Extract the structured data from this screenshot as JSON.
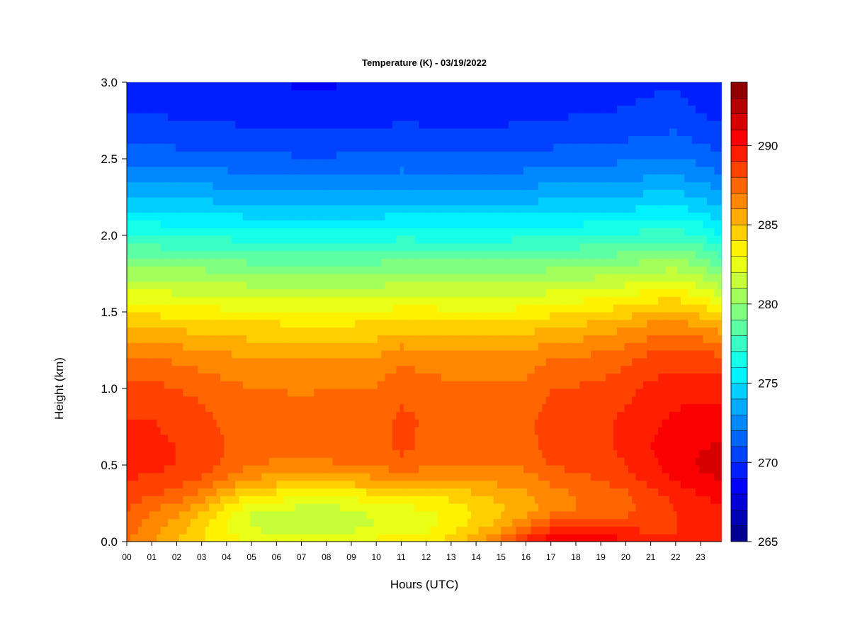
{
  "chart_data": {
    "type": "heatmap",
    "title": "Temperature (K) - 03/19/2022",
    "xlabel": "Hours (UTC)",
    "ylabel": "Height (km)",
    "xlim": [
      0,
      23.85
    ],
    "ylim": [
      0.0,
      3.0
    ],
    "x_ticks": [
      {
        "value": 0,
        "label": "00"
      },
      {
        "value": 1,
        "label": "01"
      },
      {
        "value": 2,
        "label": "02"
      },
      {
        "value": 3,
        "label": "03"
      },
      {
        "value": 4,
        "label": "04"
      },
      {
        "value": 5,
        "label": "05"
      },
      {
        "value": 6,
        "label": "06"
      },
      {
        "value": 7,
        "label": "07"
      },
      {
        "value": 8,
        "label": "08"
      },
      {
        "value": 9,
        "label": "09"
      },
      {
        "value": 10,
        "label": "10"
      },
      {
        "value": 11,
        "label": "11"
      },
      {
        "value": 12,
        "label": "12"
      },
      {
        "value": 13,
        "label": "13"
      },
      {
        "value": 14,
        "label": "14"
      },
      {
        "value": 15,
        "label": "15"
      },
      {
        "value": 16,
        "label": "16"
      },
      {
        "value": 17,
        "label": "17"
      },
      {
        "value": 18,
        "label": "18"
      },
      {
        "value": 19,
        "label": "19"
      },
      {
        "value": 20,
        "label": "20"
      },
      {
        "value": 21,
        "label": "21"
      },
      {
        "value": 22,
        "label": "22"
      },
      {
        "value": 23,
        "label": "23"
      }
    ],
    "y_ticks": [
      {
        "value": 0.0,
        "label": "0.0"
      },
      {
        "value": 0.5,
        "label": "0.5"
      },
      {
        "value": 1.0,
        "label": "1.0"
      },
      {
        "value": 1.5,
        "label": "1.5"
      },
      {
        "value": 2.0,
        "label": "2.0"
      },
      {
        "value": 2.5,
        "label": "2.5"
      },
      {
        "value": 3.0,
        "label": "3.0"
      }
    ],
    "colorbar": {
      "min": 265,
      "max": 294,
      "step": 1,
      "ticks": [
        {
          "value": 265,
          "label": "265"
        },
        {
          "value": 270,
          "label": "270"
        },
        {
          "value": 275,
          "label": "275"
        },
        {
          "value": 280,
          "label": "280"
        },
        {
          "value": 285,
          "label": "285"
        },
        {
          "value": 290,
          "label": "290"
        }
      ],
      "colormap": "jet"
    },
    "hours": [
      0,
      1,
      2,
      3,
      4,
      5,
      6,
      7,
      8,
      9,
      10,
      11,
      12,
      13,
      14,
      15,
      16,
      17,
      18,
      19,
      20,
      21,
      22,
      23,
      23.85
    ],
    "heights_km": [
      0.0,
      0.1,
      0.2,
      0.3,
      0.4,
      0.5,
      0.6,
      0.8,
      1.0,
      1.2,
      1.4,
      1.6,
      1.8,
      2.0,
      2.2,
      2.4,
      2.6,
      2.8,
      3.0
    ],
    "temperature_profiles_K": [
      [
        287.0,
        287.5,
        288.0,
        288.5,
        289.0,
        289.3,
        289.3,
        289.0,
        288.3,
        287.0,
        285.0,
        282.5,
        280.0,
        277.0,
        274.5,
        272.5,
        271.0,
        270.0,
        269.5
      ],
      [
        286.0,
        286.5,
        287.0,
        288.0,
        288.8,
        289.2,
        289.3,
        289.0,
        288.3,
        287.0,
        285.0,
        282.5,
        279.8,
        277.0,
        274.5,
        272.5,
        271.0,
        270.0,
        269.5
      ],
      [
        285.0,
        285.5,
        286.3,
        287.5,
        288.5,
        289.0,
        289.0,
        288.7,
        288.0,
        286.8,
        284.8,
        282.3,
        279.7,
        276.8,
        274.3,
        272.3,
        270.8,
        269.8,
        269.3
      ],
      [
        284.0,
        284.3,
        285.0,
        286.5,
        287.8,
        288.5,
        288.6,
        288.3,
        287.7,
        286.5,
        284.7,
        282.3,
        279.7,
        276.8,
        274.3,
        272.3,
        270.8,
        269.8,
        269.3
      ],
      [
        283.5,
        283.0,
        283.5,
        285.0,
        286.8,
        287.8,
        288.0,
        287.8,
        287.3,
        286.3,
        284.5,
        282.0,
        279.5,
        276.7,
        274.2,
        272.2,
        270.7,
        269.7,
        269.2
      ],
      [
        283.0,
        281.8,
        282.0,
        283.8,
        285.8,
        287.0,
        287.5,
        287.5,
        287.0,
        286.0,
        284.3,
        282.0,
        279.3,
        276.5,
        274.0,
        272.0,
        270.5,
        269.5,
        269.0
      ],
      [
        283.0,
        281.5,
        281.8,
        283.5,
        285.5,
        286.8,
        287.4,
        287.4,
        287.0,
        286.0,
        284.3,
        282.0,
        279.3,
        276.5,
        274.0,
        272.0,
        270.5,
        269.5,
        269.0
      ],
      [
        283.0,
        281.2,
        281.5,
        283.3,
        285.3,
        286.7,
        287.3,
        287.3,
        286.9,
        285.9,
        284.2,
        281.8,
        279.2,
        276.4,
        273.9,
        271.9,
        270.4,
        269.4,
        268.9
      ],
      [
        283.0,
        281.0,
        281.3,
        283.0,
        285.3,
        286.8,
        287.4,
        287.4,
        287.0,
        286.0,
        284.2,
        281.8,
        279.2,
        276.4,
        273.9,
        271.9,
        270.4,
        269.4,
        268.9
      ],
      [
        283.2,
        281.5,
        281.8,
        283.3,
        285.5,
        287.0,
        287.5,
        287.5,
        287.0,
        286.0,
        284.3,
        281.9,
        279.3,
        276.5,
        274.0,
        272.0,
        270.5,
        269.5,
        269.0
      ],
      [
        283.3,
        282.0,
        282.2,
        283.6,
        285.7,
        287.1,
        287.6,
        287.6,
        287.1,
        286.1,
        284.3,
        281.9,
        279.3,
        276.5,
        274.0,
        272.0,
        270.5,
        269.5,
        269.0
      ],
      [
        283.5,
        282.3,
        282.5,
        284.0,
        286.2,
        287.6,
        288.2,
        288.2,
        287.8,
        286.8,
        284.7,
        282.2,
        279.5,
        276.7,
        274.2,
        272.2,
        270.7,
        269.7,
        269.2
      ],
      [
        283.8,
        282.5,
        282.8,
        284.0,
        285.8,
        287.2,
        287.8,
        287.9,
        287.5,
        286.5,
        284.6,
        282.1,
        279.4,
        276.6,
        274.1,
        272.1,
        270.6,
        269.6,
        269.1
      ],
      [
        284.5,
        283.5,
        283.3,
        284.3,
        285.8,
        287.0,
        287.5,
        287.6,
        287.3,
        286.3,
        284.5,
        282.0,
        279.4,
        276.6,
        274.1,
        272.1,
        270.6,
        269.6,
        269.1
      ],
      [
        285.8,
        284.5,
        284.0,
        284.8,
        286.0,
        287.0,
        287.4,
        287.5,
        287.2,
        286.3,
        284.5,
        282.0,
        279.4,
        276.6,
        274.1,
        272.1,
        270.6,
        269.6,
        269.1
      ],
      [
        287.3,
        285.5,
        284.8,
        285.3,
        286.3,
        287.0,
        287.4,
        287.5,
        287.2,
        286.3,
        284.5,
        282.0,
        279.4,
        276.6,
        274.1,
        272.1,
        270.6,
        269.6,
        269.1
      ],
      [
        289.5,
        287.0,
        285.5,
        285.8,
        286.5,
        287.2,
        287.6,
        287.7,
        287.3,
        286.4,
        284.6,
        282.1,
        279.5,
        276.7,
        274.2,
        272.2,
        270.7,
        269.7,
        269.2
      ],
      [
        291.0,
        288.5,
        286.5,
        286.5,
        287.2,
        288.0,
        288.4,
        288.5,
        288.0,
        287.0,
        285.0,
        282.4,
        279.7,
        276.8,
        274.3,
        272.3,
        270.8,
        269.8,
        269.3
      ],
      [
        291.3,
        289.0,
        287.0,
        287.0,
        287.7,
        288.3,
        288.6,
        288.6,
        288.1,
        287.1,
        285.2,
        282.6,
        279.8,
        276.9,
        274.4,
        272.4,
        270.9,
        269.9,
        269.4
      ],
      [
        291.0,
        289.0,
        287.3,
        287.3,
        288.0,
        288.5,
        288.8,
        288.8,
        288.3,
        287.3,
        285.5,
        282.8,
        280.0,
        277.0,
        274.5,
        272.5,
        271.0,
        270.0,
        269.5
      ],
      [
        290.0,
        288.8,
        287.7,
        287.8,
        288.5,
        289.0,
        289.2,
        289.2,
        288.7,
        287.7,
        285.9,
        283.1,
        280.2,
        277.2,
        274.6,
        272.6,
        271.1,
        270.1,
        269.6
      ],
      [
        289.3,
        288.8,
        288.3,
        288.6,
        289.3,
        289.8,
        290.0,
        289.8,
        289.3,
        288.3,
        286.4,
        283.6,
        280.5,
        277.4,
        274.8,
        272.8,
        271.3,
        270.3,
        269.8
      ],
      [
        289.0,
        289.0,
        289.0,
        289.3,
        290.0,
        290.5,
        290.5,
        290.2,
        289.6,
        288.5,
        286.6,
        283.8,
        280.7,
        277.5,
        274.9,
        272.9,
        271.4,
        270.4,
        269.9
      ],
      [
        289.3,
        289.3,
        289.5,
        290.0,
        290.7,
        291.2,
        291.0,
        290.4,
        289.7,
        288.5,
        286.2,
        283.0,
        280.0,
        277.0,
        274.5,
        272.5,
        271.0,
        270.0,
        269.5
      ],
      [
        289.3,
        289.5,
        289.7,
        290.3,
        291.0,
        291.5,
        291.2,
        290.5,
        289.6,
        288.2,
        285.5,
        282.0,
        278.8,
        276.0,
        273.8,
        272.0,
        270.6,
        269.6,
        269.1
      ]
    ]
  }
}
